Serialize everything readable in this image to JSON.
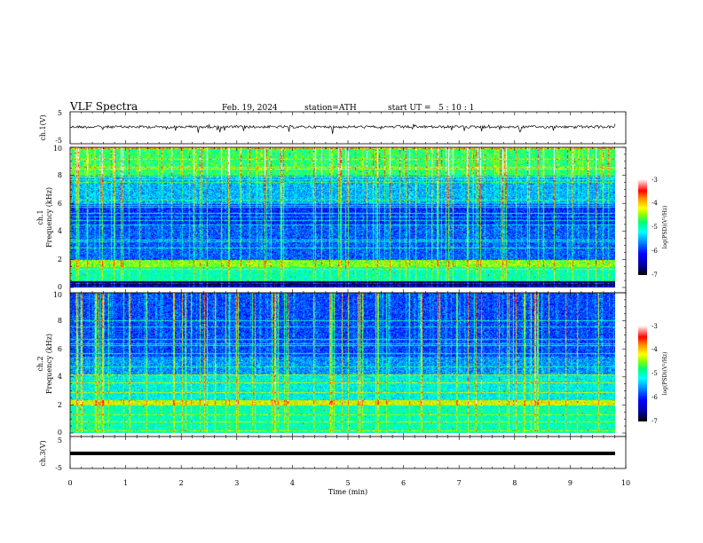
{
  "header": {
    "title": "VLF Spectra",
    "date": "Feb. 19, 2024",
    "station": "station=ATH",
    "start": "start UT =   5 : 10 : 1"
  },
  "colors": {
    "spectrogram": [
      "#000000",
      "#0000a0",
      "#0000ff",
      "#0090ff",
      "#00ffff",
      "#00ff70",
      "#8cff00",
      "#ffff00",
      "#ff8c00",
      "#ff0000",
      "#ffffff"
    ]
  },
  "chart_data": [
    {
      "type": "line",
      "panel": "ch1-voltage",
      "ylabel": "ch.1(V)",
      "ylim": [
        -5,
        5
      ],
      "yticks": [
        "5",
        "-5"
      ],
      "xlim": [
        0,
        10
      ],
      "description_series": [
        {
          "x": [
            0,
            9.8
          ],
          "y": [
            0,
            0
          ]
        }
      ]
    },
    {
      "type": "heatmap",
      "panel": "ch1-spectrogram",
      "ylabel": "ch.1\nFrequency (kHz)",
      "ylim": [
        0,
        10
      ],
      "yticks": [
        "0",
        "2",
        "4",
        "6",
        "8",
        "10"
      ],
      "xlim": [
        0,
        10
      ],
      "colorbar": {
        "label": "log(PSD)(V²/Hz)",
        "ticks": [
          "-3",
          "-4",
          "-5",
          "-6",
          "-7"
        ],
        "range": [
          -7,
          -3
        ]
      }
    },
    {
      "type": "heatmap",
      "panel": "ch2-spectrogram",
      "ylabel": "ch.2\nFrequency (kHz)",
      "ylim": [
        0,
        10
      ],
      "yticks": [
        "0",
        "2",
        "4",
        "6",
        "8",
        "10"
      ],
      "xlim": [
        0,
        10
      ],
      "colorbar": {
        "label": "log(PSD)(V²/Hz)",
        "ticks": [
          "-3",
          "-4",
          "-5",
          "-6",
          "-7"
        ],
        "range": [
          -7,
          -3
        ]
      }
    },
    {
      "type": "line",
      "panel": "ch3-voltage",
      "ylabel": "ch.3(V)",
      "ylim": [
        -5,
        5
      ],
      "yticks": [
        "5",
        "-5"
      ],
      "xlim": [
        0,
        10
      ],
      "series": [
        {
          "x": [
            0,
            9.8
          ],
          "y": [
            0.5,
            0.5
          ]
        }
      ]
    }
  ],
  "xaxis": {
    "label": "Time (min)",
    "ticks": [
      "0",
      "1",
      "2",
      "3",
      "4",
      "5",
      "6",
      "7",
      "8",
      "9",
      "10"
    ]
  },
  "colorbar_label_ch1": "log(PSD)(V²/Hz)",
  "colorbar_label_ch2": "log(PSD)(V²/Hz)",
  "ylabel_ch1_line1": "ch.1",
  "ylabel_ch1_line2": "Frequency (kHz)",
  "ylabel_ch2_line1": "ch.2",
  "ylabel_ch2_line2": "Frequency (kHz)"
}
